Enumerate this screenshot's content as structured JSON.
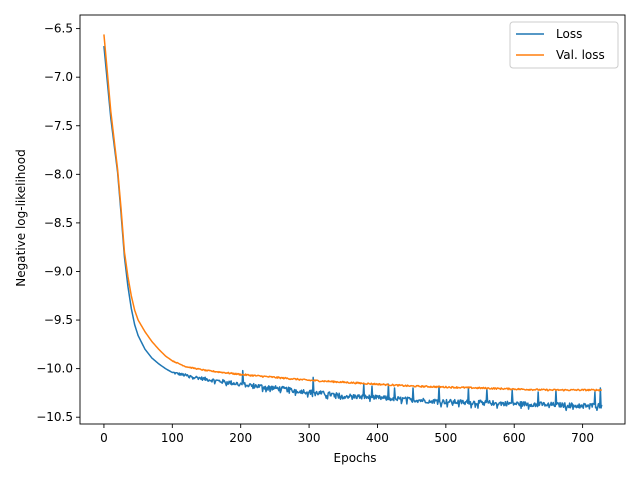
{
  "chart_data": {
    "type": "line",
    "title": "",
    "xlabel": "Epochs",
    "ylabel": "Negative log-likelihood",
    "xlim": [
      -35,
      762
    ],
    "ylim": [
      -10.57,
      -6.36
    ],
    "x_ticks": [
      0,
      100,
      200,
      300,
      400,
      500,
      600,
      700
    ],
    "y_ticks": [
      -10.5,
      -10.0,
      -9.5,
      -9.0,
      -8.5,
      -8.0,
      -7.5,
      -7.0,
      -6.5
    ],
    "x_tick_labels": [
      "0",
      "100",
      "200",
      "300",
      "400",
      "500",
      "600",
      "700"
    ],
    "y_tick_labels": [
      "−10.5",
      "−10.0",
      "−9.5",
      "−9.0",
      "−8.5",
      "−8.0",
      "−7.5",
      "−7.0",
      "−6.5"
    ],
    "grid": false,
    "legend_position": "top-right",
    "x_max_epoch": 728,
    "series": [
      {
        "name": "Loss",
        "color": "#1f77b4",
        "keypoints": [
          [
            0,
            -6.68
          ],
          [
            5,
            -7.05
          ],
          [
            10,
            -7.42
          ],
          [
            15,
            -7.7
          ],
          [
            20,
            -7.98
          ],
          [
            25,
            -8.4
          ],
          [
            30,
            -8.85
          ],
          [
            35,
            -9.15
          ],
          [
            40,
            -9.38
          ],
          [
            45,
            -9.55
          ],
          [
            50,
            -9.66
          ],
          [
            60,
            -9.8
          ],
          [
            70,
            -9.89
          ],
          [
            80,
            -9.95
          ],
          [
            90,
            -10.0
          ],
          [
            100,
            -10.04
          ],
          [
            120,
            -10.07
          ],
          [
            150,
            -10.11
          ],
          [
            200,
            -10.16
          ],
          [
            250,
            -10.2
          ],
          [
            300,
            -10.24
          ],
          [
            350,
            -10.28
          ],
          [
            400,
            -10.3
          ],
          [
            450,
            -10.32
          ],
          [
            500,
            -10.34
          ],
          [
            550,
            -10.35
          ],
          [
            600,
            -10.36
          ],
          [
            650,
            -10.37
          ],
          [
            700,
            -10.38
          ],
          [
            728,
            -10.38
          ]
        ],
        "spikes": [
          [
            203,
            -10.02
          ],
          [
            306,
            -10.09
          ],
          [
            380,
            -10.16
          ],
          [
            392,
            -10.18
          ],
          [
            416,
            -10.16
          ],
          [
            425,
            -10.2
          ],
          [
            452,
            -10.2
          ],
          [
            490,
            -10.18
          ],
          [
            533,
            -10.2
          ],
          [
            560,
            -10.21
          ],
          [
            597,
            -10.22
          ],
          [
            635,
            -10.24
          ],
          [
            661,
            -10.22
          ],
          [
            718,
            -10.24
          ],
          [
            726,
            -10.2
          ]
        ],
        "noise": 0.025
      },
      {
        "name": "Val. loss",
        "color": "#ff7f0e",
        "keypoints": [
          [
            0,
            -6.56
          ],
          [
            5,
            -6.95
          ],
          [
            10,
            -7.35
          ],
          [
            15,
            -7.65
          ],
          [
            20,
            -7.95
          ],
          [
            25,
            -8.35
          ],
          [
            30,
            -8.8
          ],
          [
            35,
            -9.05
          ],
          [
            40,
            -9.25
          ],
          [
            45,
            -9.4
          ],
          [
            50,
            -9.5
          ],
          [
            60,
            -9.62
          ],
          [
            70,
            -9.72
          ],
          [
            80,
            -9.8
          ],
          [
            90,
            -9.87
          ],
          [
            100,
            -9.92
          ],
          [
            120,
            -9.98
          ],
          [
            150,
            -10.02
          ],
          [
            200,
            -10.06
          ],
          [
            250,
            -10.09
          ],
          [
            300,
            -10.12
          ],
          [
            350,
            -10.14
          ],
          [
            400,
            -10.16
          ],
          [
            450,
            -10.18
          ],
          [
            500,
            -10.19
          ],
          [
            550,
            -10.2
          ],
          [
            600,
            -10.21
          ],
          [
            650,
            -10.22
          ],
          [
            700,
            -10.22
          ],
          [
            728,
            -10.22
          ]
        ],
        "spikes": [],
        "noise": 0.008
      }
    ]
  }
}
